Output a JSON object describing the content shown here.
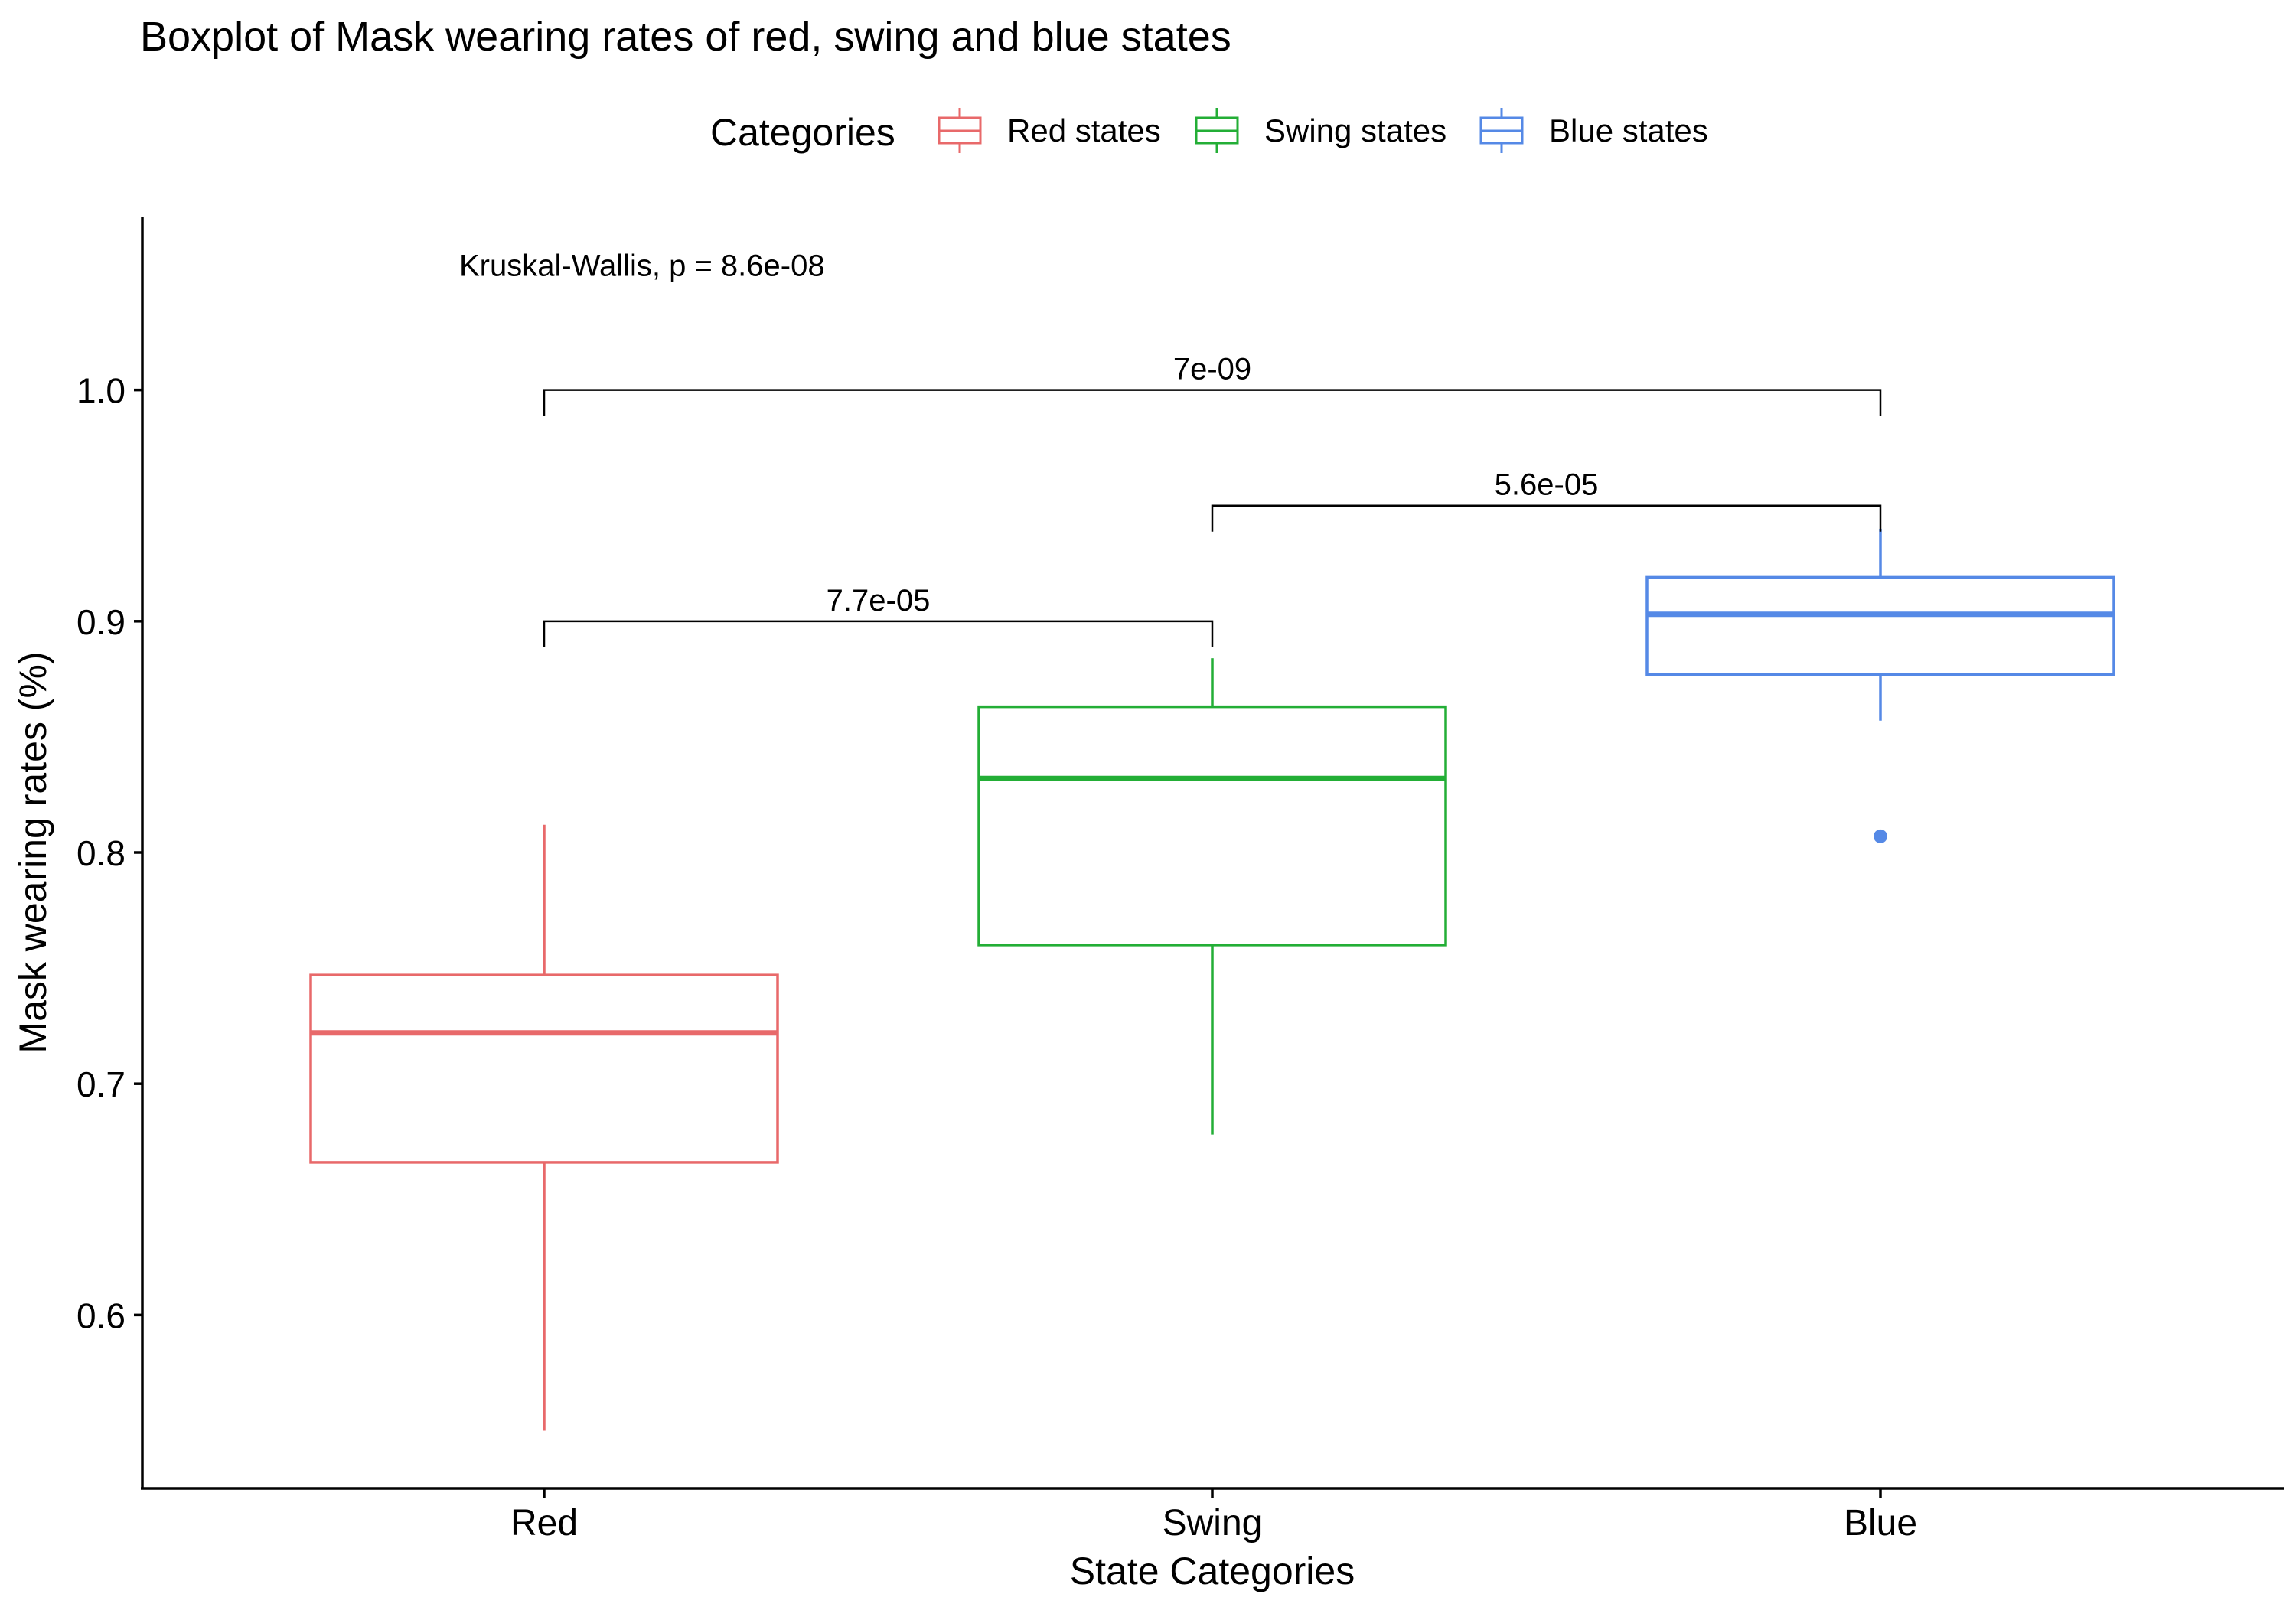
{
  "chart_data": {
    "type": "boxplot",
    "title": "Boxplot of Mask wearing rates of red, swing and blue states",
    "xlabel": "State Categories",
    "ylabel": "Mask wearing rates (%)",
    "ylim": [
      0.525,
      1.075
    ],
    "y_ticks": [
      0.6,
      0.7,
      0.8,
      0.9,
      1.0
    ],
    "y_tick_labels": [
      "0.6",
      "0.7",
      "0.8",
      "0.9",
      "1.0"
    ],
    "grid": false,
    "legend": {
      "title": "Categories",
      "position": "top",
      "entries": [
        "Red states",
        "Swing states",
        "Blue states"
      ]
    },
    "categories": [
      "Red",
      "Swing",
      "Blue"
    ],
    "series": [
      {
        "name": "Red states",
        "color": "#E8696A",
        "whisker_low": 0.55,
        "q1": 0.666,
        "median": 0.722,
        "q3": 0.747,
        "whisker_high": 0.812,
        "outliers": []
      },
      {
        "name": "Swing states",
        "color": "#23AE36",
        "whisker_low": 0.678,
        "q1": 0.76,
        "median": 0.832,
        "q3": 0.863,
        "whisker_high": 0.884,
        "outliers": []
      },
      {
        "name": "Blue states",
        "color": "#5589E6",
        "whisker_low": 0.857,
        "q1": 0.877,
        "median": 0.903,
        "q3": 0.919,
        "whisker_high": 0.94,
        "outliers": [
          0.807
        ]
      }
    ],
    "global_test": {
      "text": "Kruskal-Wallis, p = 8.6e-08",
      "y": 1.054
    },
    "comparisons": [
      {
        "from": 0,
        "to": 1,
        "y": 0.9,
        "label": "7.7e-05"
      },
      {
        "from": 1,
        "to": 2,
        "y": 0.95,
        "label": "5.6e-05"
      },
      {
        "from": 0,
        "to": 2,
        "y": 1.0,
        "label": "7e-09"
      }
    ]
  }
}
